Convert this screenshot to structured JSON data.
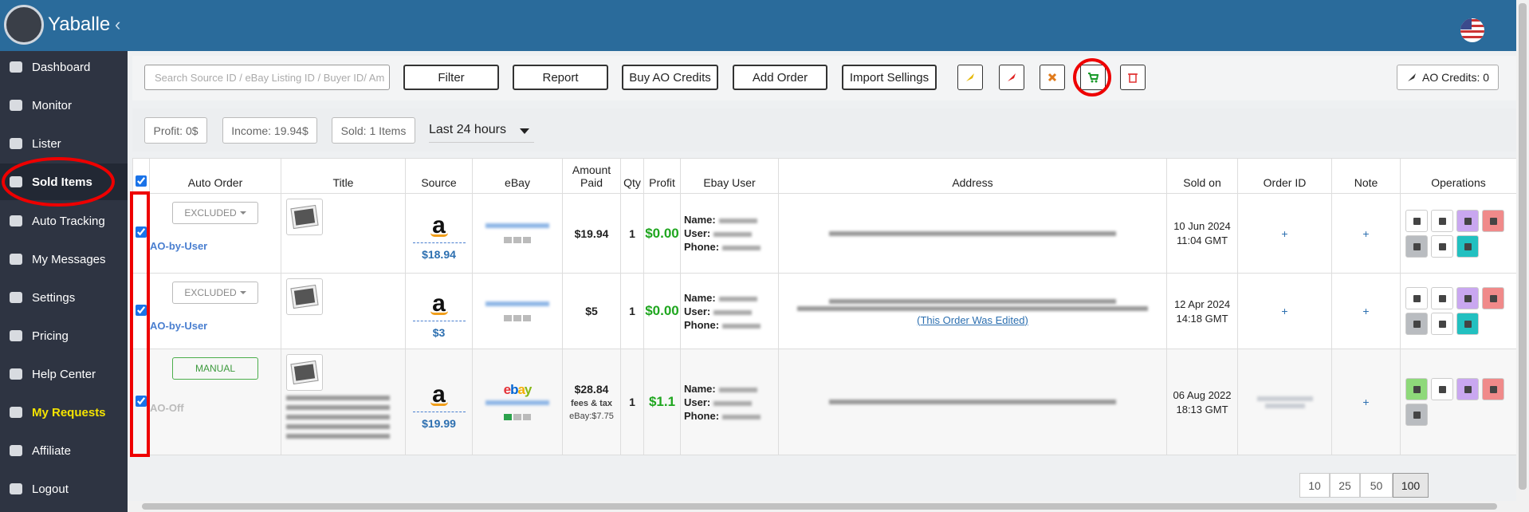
{
  "app": {
    "brand": "Yaballe",
    "collapse": "‹"
  },
  "sidebar": {
    "items": [
      "Dashboard",
      "Monitor",
      "Lister",
      "Sold Items",
      "Auto Tracking",
      "My Messages",
      "Settings",
      "Pricing",
      "Help Center",
      "My Requests",
      "Affiliate",
      "Logout"
    ],
    "active_index": 3,
    "highlight_index": 9
  },
  "toolbar": {
    "search_placeholder": "Search Source ID / eBay Listing ID / Buyer ID/ Am",
    "buttons": [
      "Filter",
      "Report",
      "Buy AO Credits",
      "Add Order",
      "Import Sellings"
    ],
    "credits": "AO Credits: 0"
  },
  "stats": {
    "items": [
      "Profit: 0$",
      "Income: 19.94$",
      "Sold: 1 Items"
    ],
    "period": "Last 24 hours"
  },
  "table": {
    "headers": [
      "Auto Order",
      "Title",
      "Source",
      "eBay",
      "Amount Paid",
      "Qty",
      "Profit",
      "Ebay User",
      "Address",
      "Sold on",
      "Order ID",
      "Note",
      "Operations"
    ],
    "rows": [
      {
        "auto_order": "EXCLUDED",
        "ao_status": "AO-by-User",
        "source_logo": "a",
        "source_price": "$18.94",
        "amount_paid": "$19.94",
        "qty": "1",
        "profit": "$0.00",
        "buyer_fields": [
          "Name:",
          "User:",
          "Phone:"
        ],
        "sold_date": "10 Jun 2024",
        "sold_time": "11:04 GMT",
        "order_id": "+",
        "note": "+"
      },
      {
        "auto_order": "EXCLUDED",
        "ao_status": "AO-by-User",
        "source_logo": "a",
        "source_price": "$3",
        "amount_paid": "$5",
        "qty": "1",
        "profit": "$0.00",
        "buyer_fields": [
          "Name:",
          "User:",
          "Phone:"
        ],
        "address_note": "(This Order Was Edited)",
        "sold_date": "12 Apr 2024",
        "sold_time": "14:18 GMT",
        "order_id": "+",
        "note": "+"
      },
      {
        "auto_order": "MANUAL",
        "ao_status": "AO-Off",
        "source_logo": "a",
        "source_price": "$19.99",
        "ebay_logo": "ebay",
        "amount_paid": "$28.84",
        "amount_notes": [
          "fees & tax",
          "eBay:$7.75"
        ],
        "qty": "1",
        "profit": "$1.1",
        "buyer_fields": [
          "Name:",
          "User:",
          "Phone:"
        ],
        "sold_date": "06 Aug 2022",
        "sold_time": "18:13 GMT",
        "note": "+"
      }
    ]
  },
  "pagination": {
    "sizes": [
      "10",
      "25",
      "50",
      "100"
    ],
    "active_index": 3
  }
}
